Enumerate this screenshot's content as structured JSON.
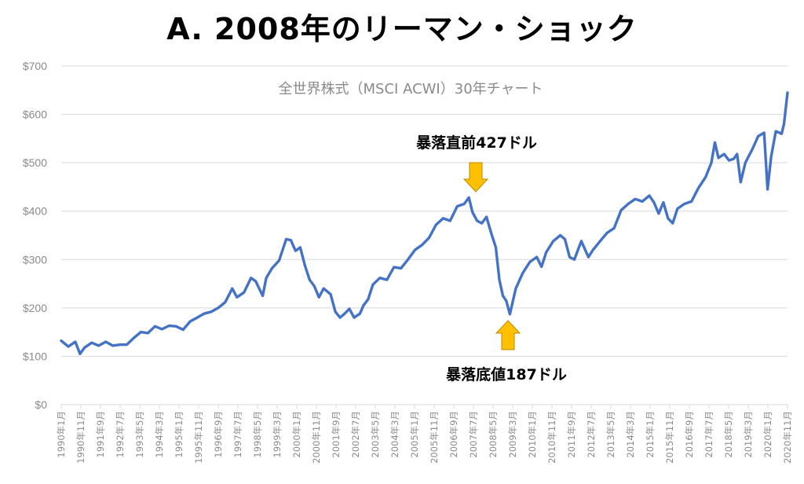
{
  "heading": "A. 2008年のリーマン・ショック",
  "chart_data": {
    "type": "line",
    "title": "全世界株式（MSCI ACWI）30年チャート",
    "xlabel": "",
    "ylabel": "",
    "ylim": [
      0,
      700
    ],
    "y_ticks": [
      "$0",
      "$100",
      "$200",
      "$300",
      "$400",
      "$500",
      "$600",
      "$700"
    ],
    "y_tick_values": [
      0,
      100,
      200,
      300,
      400,
      500,
      600,
      700
    ],
    "x_range": [
      1990.0,
      2021.0
    ],
    "x_tick_labels": [
      "1990年1月",
      "1990年11月",
      "1991年9月",
      "1992年7月",
      "1993年5月",
      "1994年3月",
      "1995年1月",
      "1995年11月",
      "1996年9月",
      "1997年7月",
      "1998年5月",
      "1999年3月",
      "2000年1月",
      "2000年11月",
      "2001年9月",
      "2002年7月",
      "2003年5月",
      "2004年3月",
      "2005年1月",
      "2005年11月",
      "2006年9月",
      "2007年7月",
      "2008年5月",
      "2009年3月",
      "2010年1月",
      "2010年11月",
      "2011年9月",
      "2012年7月",
      "2013年5月",
      "2014年3月",
      "2015年1月",
      "2015年11月",
      "2016年9月",
      "2017年7月",
      "2018年5月",
      "2019年3月",
      "2020年1月",
      "2020年11月"
    ],
    "grid": true,
    "color": "#4472c4",
    "series": [
      {
        "name": "",
        "x": [
          1990.0,
          1990.3,
          1990.6,
          1990.8,
          1991.0,
          1991.3,
          1991.6,
          1991.9,
          1992.2,
          1992.5,
          1992.8,
          1993.1,
          1993.4,
          1993.7,
          1994.0,
          1994.3,
          1994.6,
          1994.9,
          1995.2,
          1995.5,
          1995.8,
          1996.1,
          1996.4,
          1996.7,
          1997.0,
          1997.3,
          1997.5,
          1997.8,
          1998.1,
          1998.3,
          1998.6,
          1998.75,
          1999.0,
          1999.3,
          1999.6,
          1999.8,
          2000.0,
          2000.2,
          2000.4,
          2000.6,
          2000.8,
          2001.0,
          2001.2,
          2001.5,
          2001.7,
          2001.9,
          2002.1,
          2002.3,
          2002.5,
          2002.75,
          2002.9,
          2003.1,
          2003.3,
          2003.6,
          2003.9,
          2004.2,
          2004.5,
          2004.8,
          2005.1,
          2005.4,
          2005.7,
          2006.0,
          2006.3,
          2006.6,
          2006.9,
          2007.2,
          2007.4,
          2007.55,
          2007.75,
          2007.95,
          2008.15,
          2008.35,
          2008.55,
          2008.7,
          2008.85,
          2009.0,
          2009.15,
          2009.4,
          2009.7,
          2010.0,
          2010.3,
          2010.5,
          2010.7,
          2011.0,
          2011.3,
          2011.5,
          2011.7,
          2011.9,
          2012.2,
          2012.5,
          2012.7,
          2013.0,
          2013.3,
          2013.6,
          2013.9,
          2014.2,
          2014.5,
          2014.8,
          2015.1,
          2015.3,
          2015.5,
          2015.7,
          2015.9,
          2016.1,
          2016.3,
          2016.6,
          2016.9,
          2017.2,
          2017.5,
          2017.75,
          2017.9,
          2018.05,
          2018.3,
          2018.5,
          2018.7,
          2018.85,
          2019.0,
          2019.2,
          2019.5,
          2019.75,
          2020.0,
          2020.15,
          2020.3,
          2020.5,
          2020.75,
          2020.85,
          2021.0
        ],
        "values": [
          132,
          120,
          130,
          105,
          118,
          128,
          122,
          130,
          122,
          124,
          124,
          138,
          150,
          148,
          162,
          156,
          163,
          162,
          155,
          172,
          180,
          188,
          192,
          200,
          212,
          240,
          222,
          232,
          262,
          255,
          225,
          262,
          282,
          298,
          342,
          340,
          318,
          325,
          288,
          258,
          245,
          222,
          240,
          228,
          192,
          180,
          188,
          198,
          180,
          188,
          205,
          218,
          248,
          262,
          258,
          284,
          282,
          300,
          320,
          330,
          345,
          372,
          385,
          380,
          410,
          415,
          428,
          398,
          380,
          375,
          388,
          355,
          325,
          258,
          225,
          214,
          187,
          240,
          272,
          295,
          305,
          285,
          315,
          338,
          350,
          342,
          305,
          300,
          338,
          305,
          320,
          338,
          355,
          365,
          402,
          415,
          425,
          420,
          432,
          418,
          395,
          418,
          385,
          375,
          405,
          415,
          420,
          448,
          470,
          500,
          542,
          510,
          518,
          505,
          508,
          518,
          460,
          500,
          528,
          555,
          562,
          445,
          512,
          565,
          560,
          580,
          645
        ]
      }
    ]
  },
  "annotations": [
    {
      "text": "暴落直前427ドル",
      "arrow": "down"
    },
    {
      "text": "暴落底値187ドル",
      "arrow": "up"
    }
  ],
  "colors": {
    "line": "#4472c4",
    "arrow_fill": "#ffc000",
    "arrow_stroke": "#b88a00",
    "grid": "#d9d9d9",
    "tick_text": "#8a8a8a"
  }
}
